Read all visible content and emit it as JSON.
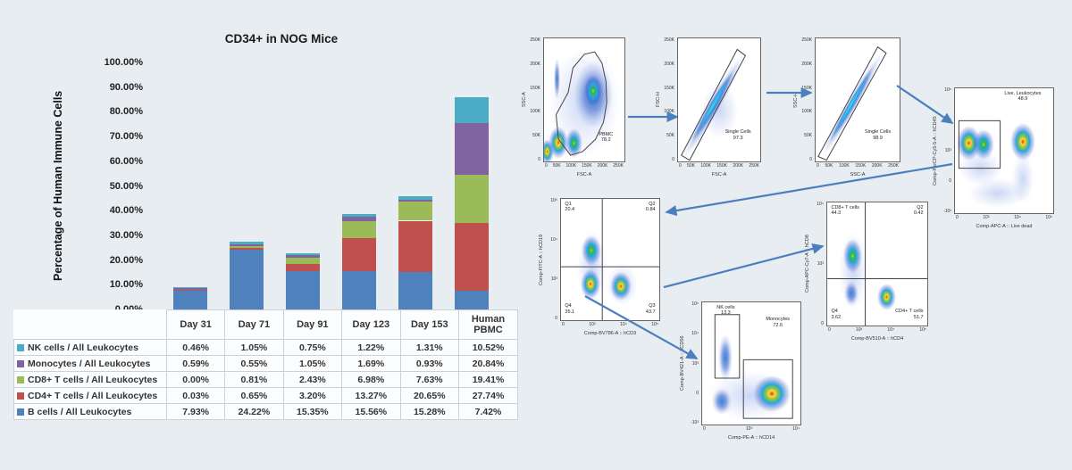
{
  "page": {
    "background": "#e8edf2"
  },
  "chart": {
    "title": "CD34+ in NOG Mice",
    "y_axis_title": "Percentage of Human Immune Cells",
    "y_ticks": [
      "100.00%",
      "90.00%",
      "80.00%",
      "70.00%",
      "60.00%",
      "50.00%",
      "40.00%",
      "30.00%",
      "20.00%",
      "10.00%",
      "0.00%"
    ]
  },
  "chart_data": {
    "type": "bar",
    "stacked": true,
    "title": "CD34+ in NOG Mice",
    "xlabel": "",
    "ylabel": "Percentage of Human Immune Cells",
    "ylim": [
      0,
      100
    ],
    "grid": false,
    "legend_position": "table-left",
    "categories": [
      "Day 31",
      "Day 71",
      "Day 91",
      "Day 123",
      "Day 153",
      "Human PBMC"
    ],
    "series": [
      {
        "name": "B cells / All Leukocytes",
        "color": "#4F81BD",
        "values": [
          7.93,
          24.22,
          15.35,
          15.56,
          15.28,
          7.42
        ]
      },
      {
        "name": "CD4+ T cells / All Leukocytes",
        "color": "#C0504D",
        "values": [
          0.03,
          0.65,
          3.2,
          13.27,
          20.65,
          27.74
        ]
      },
      {
        "name": "CD8+ T cells / All Leukocytes",
        "color": "#9BBB59",
        "values": [
          0.0,
          0.81,
          2.43,
          6.98,
          7.63,
          19.41
        ]
      },
      {
        "name": "Monocytes / All Leukocytes",
        "color": "#8064A2",
        "values": [
          0.59,
          0.55,
          1.05,
          1.69,
          0.93,
          20.84
        ]
      },
      {
        "name": "NK cells / All Leukocytes",
        "color": "#4BACC6",
        "values": [
          0.46,
          1.05,
          0.75,
          1.22,
          1.31,
          10.52
        ]
      }
    ]
  },
  "table": {
    "columns": [
      "Day 31",
      "Day 71",
      "Day 91",
      "Day 123",
      "Day 153",
      "Human PBMC"
    ],
    "rows": [
      {
        "label": "NK cells / All Leukocytes",
        "color": "#4BACC6",
        "values": [
          "0.46%",
          "1.05%",
          "0.75%",
          "1.22%",
          "1.31%",
          "10.52%"
        ]
      },
      {
        "label": "Monocytes / All Leukocytes",
        "color": "#8064A2",
        "values": [
          "0.59%",
          "0.55%",
          "1.05%",
          "1.69%",
          "0.93%",
          "20.84%"
        ]
      },
      {
        "label": "CD8+ T cells / All Leukocytes",
        "color": "#9BBB59",
        "values": [
          "0.00%",
          "0.81%",
          "2.43%",
          "6.98%",
          "7.63%",
          "19.41%"
        ]
      },
      {
        "label": "CD4+ T cells / All Leukocytes",
        "color": "#C0504D",
        "values": [
          "0.03%",
          "0.65%",
          "3.20%",
          "13.27%",
          "20.65%",
          "27.74%"
        ]
      },
      {
        "label": "B cells / All Leukocytes",
        "color": "#4F81BD",
        "values": [
          "7.93%",
          "24.22%",
          "15.35%",
          "15.56%",
          "15.28%",
          "7.42%"
        ]
      }
    ]
  },
  "flow": {
    "arrow_color": "#4b7fbe",
    "plots": [
      {
        "id": "pbmc",
        "xlabel": "FSC-A",
        "ylabel": "SSC-A",
        "x_ticks": [
          "0",
          "50K",
          "100K",
          "150K",
          "200K",
          "250K"
        ],
        "y_ticks": [
          "250K",
          "200K",
          "150K",
          "100K",
          "50K",
          "0"
        ],
        "gates": [
          {
            "label": "PBMC",
            "value": "78.2"
          }
        ]
      },
      {
        "id": "single-cells-fsc",
        "xlabel": "FSC-A",
        "ylabel": "FSC-H",
        "x_ticks": [
          "0",
          "50K",
          "100K",
          "150K",
          "200K",
          "250K"
        ],
        "y_ticks": [
          "250K",
          "200K",
          "150K",
          "100K",
          "50K",
          "0"
        ],
        "gates": [
          {
            "label": "Single Cells",
            "value": "97.3"
          }
        ]
      },
      {
        "id": "single-cells-ssc",
        "xlabel": "SSC-A",
        "ylabel": "SSC-H",
        "x_ticks": [
          "0",
          "50K",
          "100K",
          "150K",
          "200K",
          "250K"
        ],
        "y_ticks": [
          "250K",
          "200K",
          "150K",
          "100K",
          "50K",
          "0"
        ],
        "gates": [
          {
            "label": "Single Cells",
            "value": "98.9"
          }
        ]
      },
      {
        "id": "live-leukocytes",
        "xlabel": "Comp-APC-A :: Live dead",
        "ylabel": "Comp-PerCP-Cy5-5-A :: hCD45",
        "x_ticks": [
          "0",
          "10³",
          "10⁴",
          "10⁵"
        ],
        "y_ticks": [
          "10⁵",
          "10⁴",
          "10³",
          "0",
          "-10³"
        ],
        "gates": [
          {
            "label": "Live, Leukocytes",
            "value": "48.9"
          }
        ]
      },
      {
        "id": "cd19-vs-cd3",
        "xlabel": "Comp-BV786-A :: hCD3",
        "ylabel": "Comp-FITC-A :: hCD19",
        "x_ticks": [
          "0",
          "10³",
          "10⁴",
          "10⁵"
        ],
        "y_ticks": [
          "10⁵",
          "10⁴",
          "10³",
          "0"
        ],
        "quadrants": [
          {
            "label": "Q1",
            "value": "20.4"
          },
          {
            "label": "Q2",
            "value": "0.84"
          },
          {
            "label": "Q3",
            "value": "43.7"
          },
          {
            "label": "Q4",
            "value": "35.1"
          }
        ]
      },
      {
        "id": "cd8-vs-cd4",
        "xlabel": "Comp-BV510-A :: hCD4",
        "ylabel": "Comp-APC-Cy7-A :: hCD8",
        "x_ticks": [
          "0",
          "10³",
          "10⁴",
          "10⁵"
        ],
        "y_ticks": [
          "10⁴",
          "10³",
          "0"
        ],
        "quadrants": [
          {
            "label": "CD8+ T cells",
            "value": "44.3"
          },
          {
            "label": "Q2",
            "value": "0.42"
          },
          {
            "label": "CD4+ T cells",
            "value": "51.7"
          },
          {
            "label": "Q4",
            "value": "3.62"
          }
        ]
      },
      {
        "id": "nk-vs-monocytes",
        "xlabel": "Comp-PE-A :: hCD14",
        "ylabel": "Comp-BV421-A :: hCD56",
        "x_ticks": [
          "0",
          "10³",
          "10⁴"
        ],
        "y_ticks": [
          "10⁵",
          "10⁴",
          "10³",
          "0",
          "-10³"
        ],
        "gates": [
          {
            "label": "NK cells",
            "value": "13.3"
          },
          {
            "label": "Monocytes",
            "value": "72.6"
          }
        ]
      }
    ]
  }
}
